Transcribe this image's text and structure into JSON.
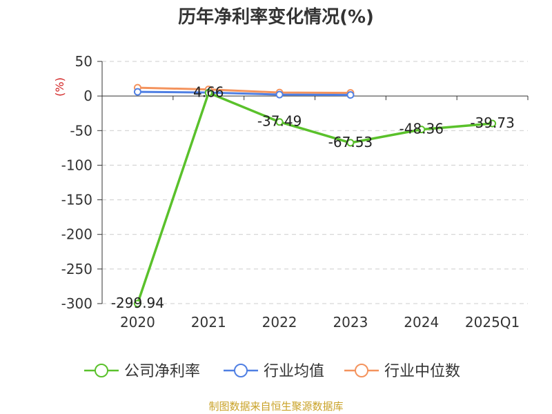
{
  "chart_data": {
    "type": "line",
    "title": "历年净利率变化情况(%)",
    "ylabel": "(%)",
    "categories": [
      "2020",
      "2021",
      "2022",
      "2023",
      "2024",
      "2025Q1"
    ],
    "ylim": [
      -300,
      50
    ],
    "yticks": [
      50,
      0,
      -50,
      -100,
      -150,
      -200,
      -250,
      -300
    ],
    "grid": true,
    "legend_position": "bottom",
    "series": [
      {
        "name": "公司净利率",
        "color": "#5ac12b",
        "values": [
          -299.94,
          4.66,
          -37.49,
          -67.53,
          -48.36,
          -39.73
        ],
        "labels": [
          "-299.94",
          "4.66",
          "-37.49",
          "-67.53",
          "-48.36",
          "-39.73"
        ]
      },
      {
        "name": "行业均值",
        "color": "#4f7fe3",
        "values": [
          6.0,
          5.0,
          2.0,
          1.5,
          null,
          null
        ]
      },
      {
        "name": "行业中位数",
        "color": "#f4935d",
        "values": [
          12.0,
          9.5,
          5.0,
          4.5,
          null,
          null
        ]
      }
    ]
  },
  "source": "制图数据来自恒生聚源数据库",
  "colors": {
    "unit": "#d11f1f",
    "source": "#c9a227",
    "grid": "#cccccc",
    "axis": "#333333"
  }
}
